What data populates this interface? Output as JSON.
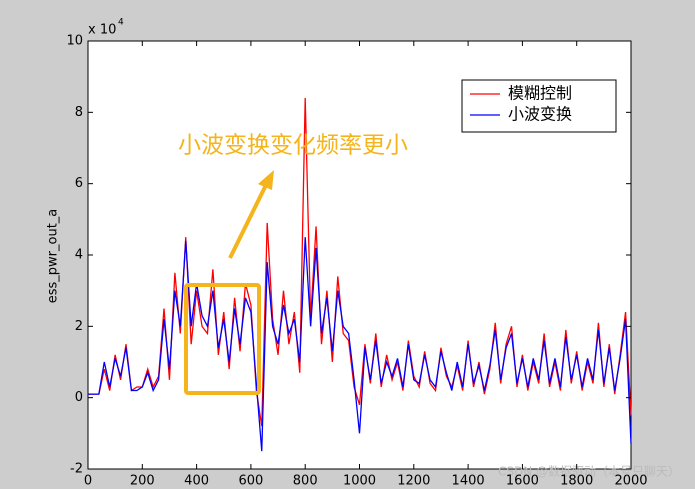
{
  "chart_data": {
    "type": "line",
    "ylabel": "ess_pwr_out_a",
    "y_multiplier": {
      "base": "x 10",
      "exponent": "4"
    },
    "annotation": "小波变换变化频率更小",
    "watermark": "CSDN @数据驱动（本号只聊天）",
    "legend": "northeast",
    "xlim": [
      0,
      2000
    ],
    "xticks": [
      0,
      200,
      400,
      600,
      800,
      1000,
      1200,
      1400,
      1600,
      1800,
      2000
    ],
    "ylim": [
      -2,
      10
    ],
    "yticks": [
      -2,
      0,
      2,
      4,
      6,
      8,
      10
    ],
    "x": [
      0,
      20,
      40,
      60,
      80,
      100,
      120,
      140,
      160,
      180,
      200,
      220,
      240,
      260,
      280,
      300,
      320,
      340,
      360,
      380,
      400,
      420,
      440,
      460,
      480,
      500,
      520,
      540,
      560,
      580,
      600,
      620,
      640,
      660,
      680,
      700,
      720,
      740,
      760,
      780,
      800,
      820,
      840,
      860,
      880,
      900,
      920,
      940,
      960,
      980,
      1000,
      1020,
      1040,
      1060,
      1080,
      1100,
      1120,
      1140,
      1160,
      1180,
      1200,
      1220,
      1240,
      1260,
      1280,
      1300,
      1320,
      1340,
      1360,
      1380,
      1400,
      1420,
      1440,
      1460,
      1480,
      1500,
      1520,
      1540,
      1560,
      1580,
      1600,
      1620,
      1640,
      1660,
      1680,
      1700,
      1720,
      1740,
      1760,
      1780,
      1800,
      1820,
      1840,
      1860,
      1880,
      1900,
      1920,
      1940,
      1960,
      1980,
      2000
    ],
    "series": [
      {
        "name": "模糊控制",
        "color": "#ff0000",
        "values": [
          0.1,
          0.1,
          0.1,
          0.8,
          0.2,
          1.2,
          0.5,
          1.5,
          0.2,
          0.3,
          0.3,
          0.8,
          0.3,
          0.6,
          2.5,
          0.5,
          3.5,
          1.8,
          4.5,
          1.5,
          3.0,
          2.0,
          1.8,
          3.6,
          1.2,
          2.4,
          0.8,
          2.8,
          1.3,
          3.2,
          2.6,
          0.2,
          -0.8,
          4.9,
          2.2,
          1.2,
          3.0,
          1.5,
          2.4,
          0.7,
          8.4,
          2.2,
          4.8,
          1.5,
          3.0,
          1.0,
          3.4,
          1.8,
          1.6,
          0.3,
          -0.2,
          1.5,
          0.4,
          1.8,
          0.3,
          1.2,
          0.5,
          1.0,
          0.2,
          1.6,
          0.6,
          0.3,
          1.3,
          0.4,
          0.2,
          1.4,
          0.6,
          0.3,
          0.9,
          0.2,
          1.6,
          0.3,
          1.0,
          0.1,
          0.8,
          2.1,
          0.4,
          1.5,
          2.0,
          0.3,
          1.2,
          0.2,
          1.0,
          0.4,
          1.8,
          0.3,
          1.0,
          0.2,
          1.9,
          0.4,
          1.3,
          0.2,
          1.0,
          0.4,
          2.1,
          0.3,
          1.5,
          0.1,
          1.2,
          2.4,
          -0.5
        ]
      },
      {
        "name": "小波变换",
        "color": "#0000ff",
        "values": [
          0.1,
          0.1,
          0.1,
          1.0,
          0.3,
          1.1,
          0.6,
          1.4,
          0.2,
          0.2,
          0.3,
          0.7,
          0.2,
          0.5,
          2.2,
          0.8,
          3.0,
          2.0,
          4.4,
          2.0,
          3.2,
          2.3,
          2.0,
          3.0,
          1.4,
          2.2,
          1.0,
          2.5,
          1.5,
          2.8,
          2.4,
          0.4,
          -1.5,
          3.8,
          2.0,
          1.5,
          2.6,
          1.8,
          2.2,
          1.0,
          4.5,
          2.0,
          4.2,
          1.8,
          2.8,
          1.3,
          3.0,
          2.0,
          1.8,
          0.5,
          -1.0,
          1.4,
          0.5,
          1.6,
          0.4,
          1.0,
          0.6,
          1.1,
          0.3,
          1.5,
          0.5,
          0.4,
          1.2,
          0.5,
          0.3,
          1.3,
          0.7,
          0.2,
          1.0,
          0.3,
          1.5,
          0.4,
          0.9,
          0.2,
          0.9,
          1.9,
          0.5,
          1.4,
          1.8,
          0.4,
          1.1,
          0.3,
          1.1,
          0.5,
          1.6,
          0.4,
          1.1,
          0.3,
          1.7,
          0.5,
          1.2,
          0.3,
          1.1,
          0.5,
          1.9,
          0.4,
          1.4,
          0.2,
          1.1,
          2.2,
          -1.3
        ]
      }
    ]
  }
}
